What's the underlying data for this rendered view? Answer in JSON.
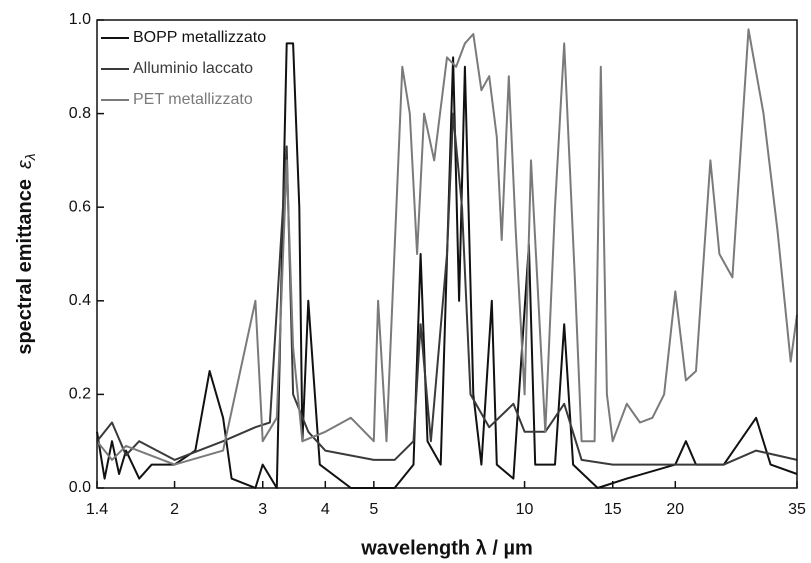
{
  "chart_data": {
    "type": "line",
    "xlabel": "wavelength  λ / µm",
    "ylabel": "spectral emittance",
    "ylabel_symbol": "ε",
    "ylabel_subscript": "λ",
    "xscale": "log",
    "xlim": [
      1.4,
      35
    ],
    "xticks": [
      1.4,
      2,
      3,
      4,
      5,
      10,
      15,
      20,
      35
    ],
    "ylim": [
      0,
      1
    ],
    "yticks": [
      {
        "value": 0,
        "label": "0.0"
      },
      0.2,
      0.4,
      0.6,
      0.8,
      {
        "value": 1,
        "label": "1.0"
      }
    ],
    "legend": "upper left",
    "series": [
      {
        "name": "BOPP metallizzato",
        "color": "#111111",
        "x": [
          1.4,
          1.45,
          1.5,
          1.55,
          1.6,
          1.7,
          1.8,
          2.0,
          2.2,
          2.35,
          2.5,
          2.6,
          2.9,
          3.0,
          3.2,
          3.35,
          3.45,
          3.55,
          3.6,
          3.7,
          3.9,
          4.5,
          5.0,
          5.5,
          6.0,
          6.2,
          6.4,
          6.8,
          7.2,
          7.4,
          7.6,
          7.9,
          8.2,
          8.6,
          8.8,
          9.5,
          10.2,
          10.5,
          11.5,
          12.0,
          12.5,
          14.0,
          16.0,
          20.0,
          21.0,
          22.0,
          25.0,
          29.0,
          31.0,
          35.0
        ],
        "values": [
          0.12,
          0.02,
          0.1,
          0.03,
          0.08,
          0.02,
          0.05,
          0.05,
          0.08,
          0.25,
          0.15,
          0.02,
          0.0,
          0.05,
          0.0,
          0.95,
          0.95,
          0.6,
          0.1,
          0.4,
          0.05,
          0.0,
          0.0,
          0.0,
          0.05,
          0.5,
          0.1,
          0.05,
          0.92,
          0.4,
          0.9,
          0.2,
          0.05,
          0.4,
          0.05,
          0.02,
          0.52,
          0.05,
          0.05,
          0.35,
          0.05,
          0.0,
          0.02,
          0.05,
          0.1,
          0.05,
          0.05,
          0.15,
          0.05,
          0.03
        ]
      },
      {
        "name": "Alluminio laccato",
        "color": "#3a3a3a",
        "x": [
          1.4,
          1.5,
          1.6,
          1.7,
          2.0,
          2.5,
          2.9,
          3.1,
          3.35,
          3.45,
          3.7,
          4.0,
          5.0,
          5.5,
          6.0,
          6.2,
          6.5,
          7.0,
          7.2,
          7.5,
          7.8,
          8.5,
          9.5,
          10.0,
          11.0,
          12.0,
          13.0,
          15.0,
          20.0,
          25.0,
          29.0,
          35.0
        ],
        "values": [
          0.1,
          0.14,
          0.07,
          0.1,
          0.06,
          0.1,
          0.13,
          0.14,
          0.73,
          0.2,
          0.12,
          0.08,
          0.06,
          0.06,
          0.1,
          0.35,
          0.1,
          0.5,
          0.8,
          0.6,
          0.2,
          0.13,
          0.18,
          0.12,
          0.12,
          0.18,
          0.06,
          0.05,
          0.05,
          0.05,
          0.08,
          0.06
        ]
      },
      {
        "name": "PET metallizzato",
        "color": "#7a7a7a",
        "x": [
          1.4,
          1.5,
          1.6,
          2.0,
          2.5,
          2.9,
          3.0,
          3.2,
          3.35,
          3.45,
          3.6,
          4.0,
          4.5,
          5.0,
          5.1,
          5.3,
          5.7,
          5.9,
          6.1,
          6.3,
          6.6,
          7.0,
          7.3,
          7.6,
          7.9,
          8.2,
          8.5,
          8.8,
          9.0,
          9.3,
          9.6,
          10.0,
          10.3,
          11.0,
          11.5,
          12.0,
          12.6,
          13.0,
          13.8,
          14.2,
          14.6,
          15.0,
          16.0,
          17.0,
          18.0,
          19.0,
          20.0,
          21.0,
          22.0,
          23.5,
          24.5,
          26.0,
          28.0,
          30.0,
          32.0,
          34.0,
          35.0
        ],
        "values": [
          0.1,
          0.06,
          0.09,
          0.05,
          0.08,
          0.4,
          0.1,
          0.15,
          0.7,
          0.3,
          0.1,
          0.12,
          0.15,
          0.1,
          0.4,
          0.1,
          0.9,
          0.8,
          0.5,
          0.8,
          0.7,
          0.92,
          0.9,
          0.95,
          0.97,
          0.85,
          0.88,
          0.75,
          0.53,
          0.88,
          0.55,
          0.2,
          0.7,
          0.12,
          0.6,
          0.95,
          0.45,
          0.1,
          0.1,
          0.9,
          0.2,
          0.1,
          0.18,
          0.14,
          0.15,
          0.2,
          0.42,
          0.23,
          0.25,
          0.7,
          0.5,
          0.45,
          0.98,
          0.8,
          0.55,
          0.27,
          0.37
        ]
      }
    ]
  }
}
